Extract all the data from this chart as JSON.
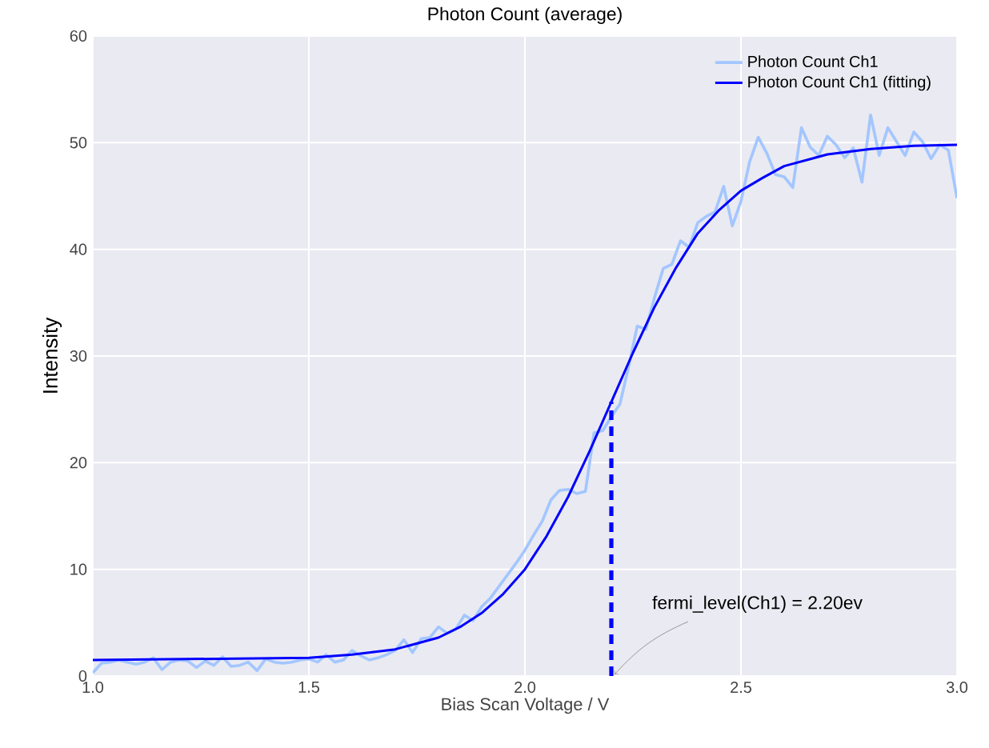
{
  "chart_data": {
    "type": "line",
    "title": "Photon Count (average)",
    "xlabel": "Bias Scan Voltage / V",
    "ylabel": "Intensity",
    "xlim": [
      1,
      3
    ],
    "ylim": [
      0,
      60
    ],
    "xticks": [
      {
        "value": 1,
        "label": "1.0"
      },
      {
        "value": 1.5,
        "label": "1.5"
      },
      {
        "value": 2,
        "label": "2.0"
      },
      {
        "value": 2.5,
        "label": "2.5"
      },
      {
        "value": 3,
        "label": "3.0"
      }
    ],
    "yticks": [
      0,
      10,
      20,
      30,
      40,
      50,
      60
    ],
    "grid": true,
    "legend": "top right",
    "marker": "none",
    "series": [
      {
        "name": "Photon Count Ch1",
        "color": "#a3c6ff",
        "x": [
          1.0,
          1.02,
          1.04,
          1.06,
          1.08,
          1.1,
          1.12,
          1.14,
          1.16,
          1.18,
          1.2,
          1.22,
          1.24,
          1.26,
          1.28,
          1.3,
          1.32,
          1.34,
          1.36,
          1.38,
          1.4,
          1.42,
          1.44,
          1.46,
          1.48,
          1.5,
          1.52,
          1.54,
          1.56,
          1.58,
          1.6,
          1.62,
          1.64,
          1.66,
          1.68,
          1.7,
          1.72,
          1.74,
          1.76,
          1.78,
          1.8,
          1.82,
          1.84,
          1.86,
          1.88,
          1.9,
          1.92,
          1.94,
          1.96,
          1.98,
          2.0,
          2.02,
          2.04,
          2.06,
          2.08,
          2.1,
          2.12,
          2.14,
          2.16,
          2.18,
          2.2,
          2.22,
          2.24,
          2.26,
          2.28,
          2.3,
          2.32,
          2.34,
          2.36,
          2.38,
          2.4,
          2.42,
          2.44,
          2.46,
          2.48,
          2.5,
          2.52,
          2.54,
          2.56,
          2.58,
          2.6,
          2.62,
          2.64,
          2.66,
          2.68,
          2.7,
          2.72,
          2.74,
          2.76,
          2.78,
          2.8,
          2.82,
          2.84,
          2.86,
          2.88,
          2.9,
          2.92,
          2.94,
          2.96,
          2.98,
          3.0
        ],
        "values": [
          0.3,
          1.2,
          1.3,
          1.5,
          1.3,
          1.1,
          1.3,
          1.7,
          0.6,
          1.3,
          1.5,
          1.4,
          0.8,
          1.4,
          1.0,
          1.8,
          0.9,
          1.0,
          1.3,
          0.5,
          1.6,
          1.3,
          1.2,
          1.3,
          1.5,
          1.6,
          1.3,
          2.0,
          1.3,
          1.5,
          2.4,
          1.9,
          1.5,
          1.7,
          2.0,
          2.4,
          3.4,
          2.2,
          3.5,
          3.6,
          4.6,
          4.0,
          4.4,
          5.7,
          5.2,
          6.5,
          7.3,
          8.4,
          9.5,
          10.6,
          11.8,
          13.2,
          14.5,
          16.5,
          17.4,
          17.5,
          17.1,
          17.3,
          22.8,
          23.0,
          24.3,
          25.5,
          29.0,
          32.8,
          32.5,
          35.5,
          38.2,
          38.6,
          40.8,
          40.2,
          42.5,
          43.1,
          43.5,
          45.9,
          42.2,
          44.5,
          48.2,
          50.5,
          49.0,
          47.0,
          46.8,
          45.8,
          51.4,
          49.6,
          48.8,
          50.6,
          49.8,
          48.6,
          49.5,
          46.3,
          52.6,
          48.8,
          51.4,
          50.1,
          48.8,
          51.0,
          50.1,
          48.5,
          49.8,
          49.3,
          44.8
        ]
      },
      {
        "name": "Photon Count Ch1 (fitting)",
        "color": "#0000ff",
        "x": [
          1.0,
          1.5,
          1.6,
          1.7,
          1.8,
          1.85,
          1.9,
          1.95,
          2.0,
          2.05,
          2.1,
          2.15,
          2.2,
          2.25,
          2.3,
          2.35,
          2.4,
          2.45,
          2.5,
          2.55,
          2.6,
          2.7,
          2.8,
          2.9,
          3.0
        ],
        "values": [
          1.5,
          1.7,
          2.0,
          2.5,
          3.6,
          4.6,
          5.9,
          7.7,
          10.0,
          13.1,
          16.8,
          21.1,
          25.7,
          30.3,
          34.6,
          38.3,
          41.5,
          43.7,
          45.5,
          46.7,
          47.8,
          48.9,
          49.4,
          49.7,
          49.8
        ]
      },
      {
        "color": "#0000ff",
        "line_style": "dashed",
        "x": [
          2.2,
          2.2
        ],
        "values": [
          0,
          25.7
        ]
      }
    ],
    "annotations": [
      {
        "text": "fermi_level(Ch1) = 2.20ev",
        "x": 2.2,
        "y": 0
      }
    ]
  }
}
